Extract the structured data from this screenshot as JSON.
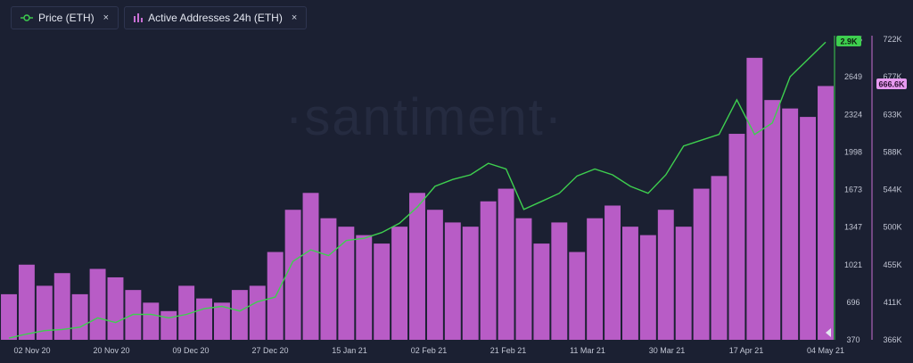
{
  "legend": {
    "price_label": "Price (ETH)",
    "addresses_label": "Active Addresses 24h (ETH)",
    "close_glyph": "×",
    "price_icon": "line-circle-icon",
    "addresses_icon": "bar-chart-icon"
  },
  "watermark": "·santiment·",
  "colors": {
    "background": "#1b2032",
    "price": "#3ecf4f",
    "addresses": "#c86fd4",
    "addresses_fill": "#b85cc6"
  },
  "badges": {
    "price_current": "2.9K",
    "addresses_current": "666.6K"
  },
  "chart_data": {
    "type": "bar",
    "x_ticks": [
      "02 Nov 20",
      "20 Nov 20",
      "09 Dec 20",
      "27 Dec 20",
      "15 Jan 21",
      "02 Feb 21",
      "21 Feb 21",
      "11 Mar 21",
      "30 Mar 21",
      "17 Apr 21",
      "04 May 21"
    ],
    "y_left_ticks": [
      "370",
      "696",
      "1021",
      "1347",
      "1673",
      "1998",
      "2324",
      "2649",
      "2975"
    ],
    "y_right_ticks": [
      "366K",
      "411K",
      "455K",
      "500K",
      "544K",
      "588K",
      "633K",
      "677K",
      "722K"
    ],
    "y_left_range": [
      370,
      2975
    ],
    "y_right_range": [
      366000,
      722000
    ],
    "series": [
      {
        "name": "Active Addresses 24h (ETH)",
        "type": "bar",
        "axis": "right",
        "x": [
          "02 Nov 20",
          "06 Nov 20",
          "10 Nov 20",
          "14 Nov 20",
          "18 Nov 20",
          "22 Nov 20",
          "26 Nov 20",
          "30 Nov 20",
          "04 Dec 20",
          "08 Dec 20",
          "12 Dec 20",
          "16 Dec 20",
          "20 Dec 20",
          "24 Dec 20",
          "28 Dec 20",
          "01 Jan 21",
          "05 Jan 21",
          "09 Jan 21",
          "13 Jan 21",
          "17 Jan 21",
          "21 Jan 21",
          "25 Jan 21",
          "29 Jan 21",
          "02 Feb 21",
          "06 Feb 21",
          "10 Feb 21",
          "14 Feb 21",
          "18 Feb 21",
          "22 Feb 21",
          "26 Feb 21",
          "02 Mar 21",
          "06 Mar 21",
          "10 Mar 21",
          "14 Mar 21",
          "18 Mar 21",
          "22 Mar 21",
          "26 Mar 21",
          "30 Mar 21",
          "03 Apr 21",
          "07 Apr 21",
          "11 Apr 21",
          "15 Apr 21",
          "19 Apr 21",
          "23 Apr 21",
          "27 Apr 21",
          "01 May 21",
          "04 May 21"
        ],
        "values": [
          420000,
          455000,
          430000,
          445000,
          420000,
          450000,
          440000,
          425000,
          410000,
          400000,
          430000,
          415000,
          410000,
          425000,
          430000,
          470000,
          520000,
          540000,
          510000,
          500000,
          490000,
          480000,
          500000,
          540000,
          520000,
          505000,
          500000,
          530000,
          545000,
          510000,
          480000,
          505000,
          470000,
          510000,
          525000,
          500000,
          490000,
          520000,
          500000,
          545000,
          560000,
          610000,
          700000,
          650000,
          640000,
          630000,
          666600
        ]
      },
      {
        "name": "Price (ETH)",
        "type": "line",
        "axis": "left",
        "x": [
          "02 Nov 20",
          "06 Nov 20",
          "10 Nov 20",
          "14 Nov 20",
          "18 Nov 20",
          "22 Nov 20",
          "26 Nov 20",
          "30 Nov 20",
          "04 Dec 20",
          "08 Dec 20",
          "12 Dec 20",
          "16 Dec 20",
          "20 Dec 20",
          "24 Dec 20",
          "28 Dec 20",
          "01 Jan 21",
          "05 Jan 21",
          "09 Jan 21",
          "13 Jan 21",
          "17 Jan 21",
          "21 Jan 21",
          "25 Jan 21",
          "29 Jan 21",
          "02 Feb 21",
          "06 Feb 21",
          "10 Feb 21",
          "14 Feb 21",
          "18 Feb 21",
          "22 Feb 21",
          "26 Feb 21",
          "02 Mar 21",
          "06 Mar 21",
          "10 Mar 21",
          "14 Mar 21",
          "18 Mar 21",
          "22 Mar 21",
          "26 Mar 21",
          "30 Mar 21",
          "03 Apr 21",
          "07 Apr 21",
          "11 Apr 21",
          "15 Apr 21",
          "19 Apr 21",
          "23 Apr 21",
          "27 Apr 21",
          "01 May 21",
          "04 May 21"
        ],
        "values": [
          385,
          420,
          450,
          460,
          480,
          560,
          520,
          590,
          590,
          560,
          590,
          640,
          660,
          620,
          700,
          740,
          1050,
          1150,
          1100,
          1230,
          1250,
          1300,
          1380,
          1520,
          1700,
          1760,
          1800,
          1900,
          1850,
          1500,
          1570,
          1640,
          1790,
          1850,
          1800,
          1700,
          1640,
          1800,
          2050,
          2100,
          2150,
          2450,
          2150,
          2250,
          2650,
          2800,
          2950
        ]
      }
    ]
  }
}
